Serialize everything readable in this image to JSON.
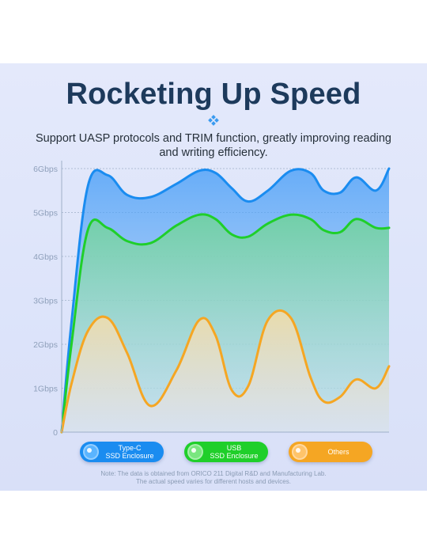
{
  "header": {
    "title": "Rocketing Up Speed",
    "subtitle": "Support UASP protocols and TRIM function, greatly improving reading and writing efficiency."
  },
  "chart_data": {
    "type": "area",
    "title": "",
    "xlabel": "",
    "ylabel": "",
    "ylim": [
      0,
      6
    ],
    "yticks": [
      0,
      1,
      2,
      3,
      4,
      5,
      6
    ],
    "ytick_labels": [
      "0",
      "1Gbps",
      "2Gbps",
      "3Gbps",
      "4Gbps",
      "5Gbps",
      "6Gbps"
    ],
    "grid": true,
    "legend_position": "bottom",
    "x": [
      0,
      3,
      8,
      14,
      20,
      27,
      35,
      42,
      47,
      52,
      57,
      63,
      70,
      76,
      80,
      85,
      90,
      96,
      100
    ],
    "series": [
      {
        "name": "Type-C SSD Enclosure",
        "color": "#1a8cf0",
        "values": [
          0,
          2.5,
          5.6,
          5.85,
          5.4,
          5.35,
          5.65,
          5.95,
          5.9,
          5.55,
          5.25,
          5.5,
          5.95,
          5.9,
          5.5,
          5.45,
          5.8,
          5.5,
          6.0
        ]
      },
      {
        "name": "USB SSD Enclosure",
        "color": "#1fcf2a",
        "values": [
          0,
          2.0,
          4.6,
          4.65,
          4.35,
          4.3,
          4.7,
          4.95,
          4.85,
          4.5,
          4.45,
          4.75,
          4.95,
          4.85,
          4.6,
          4.55,
          4.85,
          4.65,
          4.65
        ]
      },
      {
        "name": "Others",
        "color": "#f5a623",
        "values": [
          0,
          1.1,
          2.3,
          2.6,
          1.8,
          0.6,
          1.4,
          2.55,
          2.2,
          0.95,
          1.05,
          2.55,
          2.6,
          1.25,
          0.7,
          0.8,
          1.2,
          1.0,
          1.5
        ]
      }
    ]
  },
  "legend": [
    {
      "label": "Type-C\nSSD Enclosure",
      "color": "#1a8cf0",
      "dot": "#5ab4ff"
    },
    {
      "label": "USB\nSSD Enclosure",
      "color": "#1fcf2a",
      "dot": "#79e67f"
    },
    {
      "label": "Others",
      "color": "#f5a623",
      "dot": "#ffc46a"
    }
  ],
  "note": {
    "line1": "Note: The data is obtained from ORICO 211 Digital R&D and Manufacturing Lab.",
    "line2": "The actual speed varies for different hosts and devices."
  }
}
